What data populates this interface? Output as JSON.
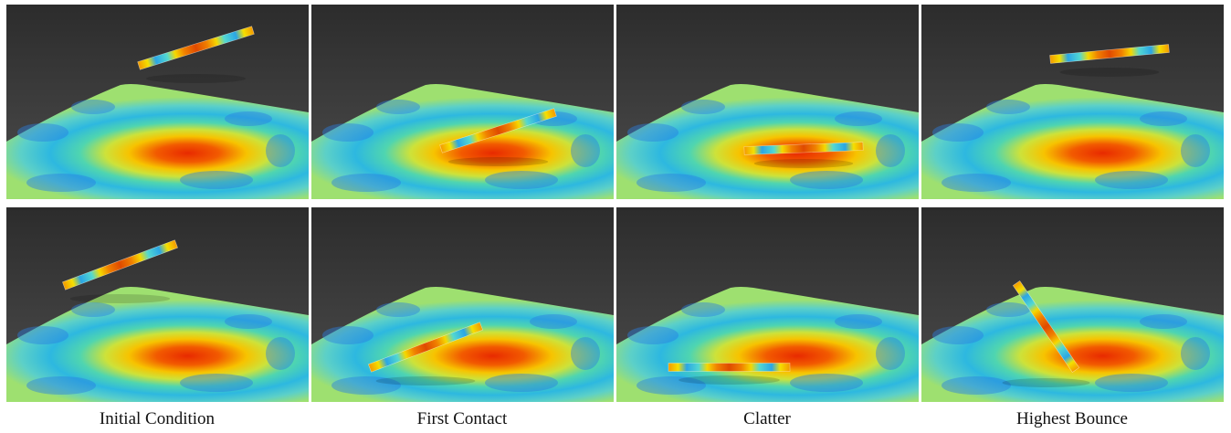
{
  "captions": [
    "Initial Condition",
    "First Contact",
    "Clatter",
    "Highest Bounce"
  ]
}
